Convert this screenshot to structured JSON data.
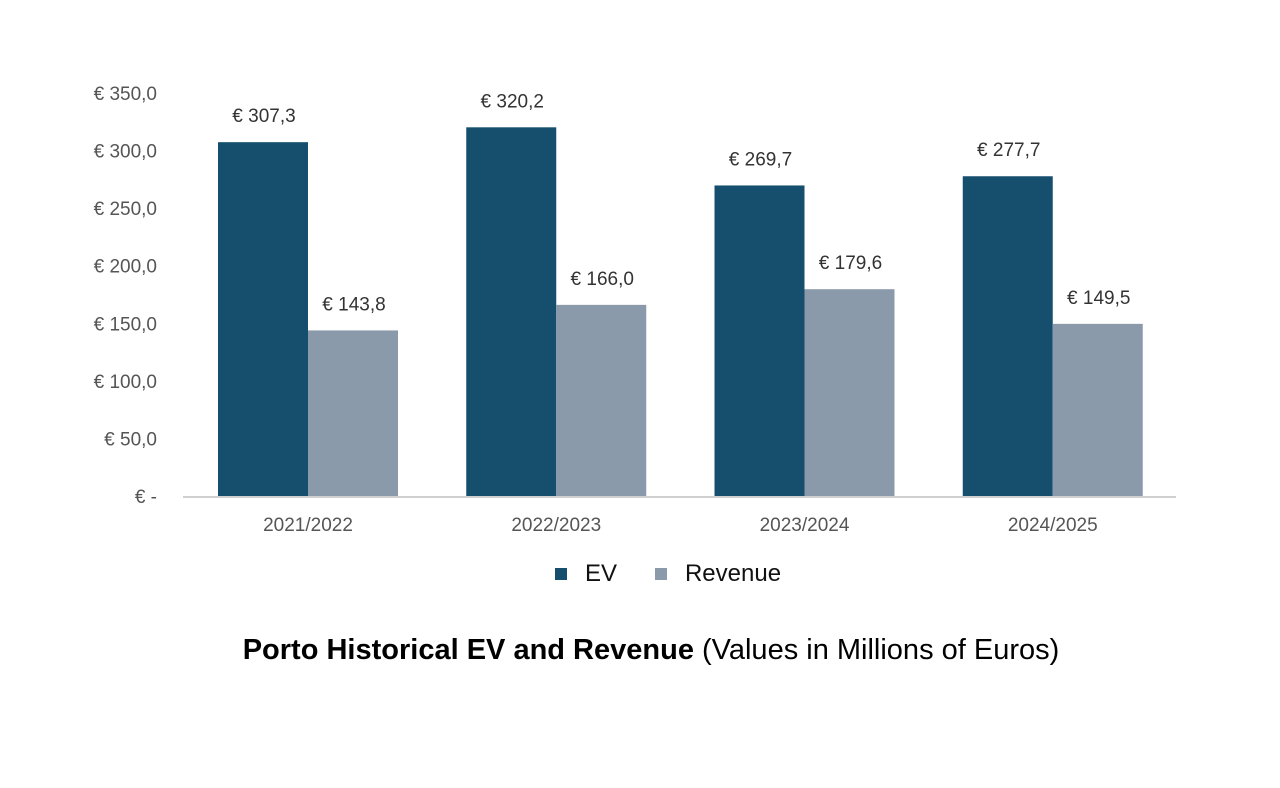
{
  "chart_data": {
    "type": "bar",
    "title": "Porto Historical EV and Revenue",
    "subtitle": "(Values in Millions of Euros)",
    "xlabel": "",
    "ylabel": "",
    "categories": [
      "2021/2022",
      "2022/2023",
      "2023/2024",
      "2024/2025"
    ],
    "series": [
      {
        "name": "EV",
        "color": "#164f6e",
        "values": [
          307.3,
          320.2,
          269.7,
          277.7
        ],
        "labels": [
          "€ 307,3",
          "€ 320,2",
          "€ 269,7",
          "€ 277,7"
        ]
      },
      {
        "name": "Revenue",
        "color": "#8a9aab",
        "values": [
          143.8,
          166.0,
          179.6,
          149.5
        ],
        "labels": [
          "€ 143,8",
          "€ 166,0",
          "€ 179,6",
          "€ 149,5"
        ]
      }
    ],
    "ylim": [
      0,
      350
    ],
    "yticks": [
      0,
      50,
      100,
      150,
      200,
      250,
      300,
      350
    ],
    "ytick_labels": [
      "€ -",
      "€ 50,0",
      "€ 100,0",
      "€ 150,0",
      "€ 200,0",
      "€ 250,0",
      "€ 300,0",
      "€ 350,0"
    ],
    "grid": false,
    "legend_position": "bottom-center"
  }
}
